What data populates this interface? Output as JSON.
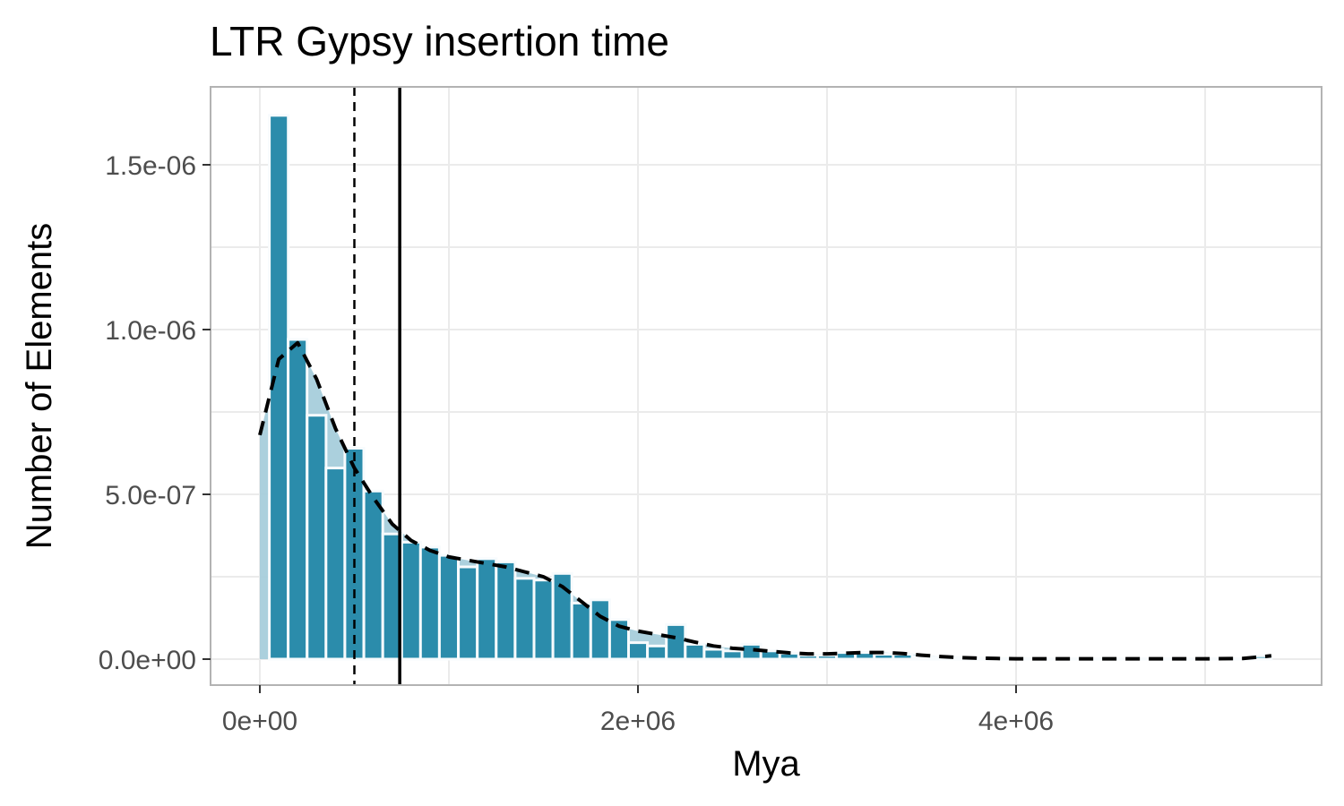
{
  "chart_data": {
    "type": "bar",
    "title": "LTR Gypsy insertion time",
    "xlabel": "Mya",
    "ylabel": "Number of Elements",
    "xlim": [
      -260000,
      5630000
    ],
    "ylim": [
      -8e-10,
      1.72e-06
    ],
    "x_ticks": [
      {
        "value": 0,
        "label": "0e+00"
      },
      {
        "value": 2000000,
        "label": "2e+06"
      },
      {
        "value": 4000000,
        "label": "4e+06"
      }
    ],
    "y_ticks": [
      {
        "value": 0,
        "label": "0.0e+00"
      },
      {
        "value": 5e-07,
        "label": "5.0e-07"
      },
      {
        "value": 1e-06,
        "label": "1.0e-06"
      },
      {
        "value": 1.5e-06,
        "label": "1.5e-06"
      }
    ],
    "bin_width": 100000,
    "bars": {
      "x": [
        100000,
        200000,
        300000,
        400000,
        500000,
        600000,
        700000,
        800000,
        900000,
        1000000,
        1100000,
        1200000,
        1300000,
        1400000,
        1500000,
        1600000,
        1700000,
        1800000,
        1900000,
        2000000,
        2100000,
        2200000,
        2300000,
        2400000,
        2500000,
        2600000,
        2700000,
        2800000,
        2900000,
        3000000,
        3100000,
        3200000,
        3300000,
        3400000,
        3500000,
        3600000,
        3700000,
        3800000,
        3900000,
        4000000,
        4100000,
        4200000,
        4300000,
        4400000,
        4500000,
        4600000,
        4700000,
        4800000,
        4900000,
        5000000,
        5100000,
        5200000,
        5300000
      ],
      "values": [
        1.65e-06,
        9.7e-07,
        7.4e-07,
        5.8e-07,
        6.4e-07,
        5.1e-07,
        3.8e-07,
        3.55e-07,
        3.4e-07,
        3.15e-07,
        2.8e-07,
        3.05e-07,
        2.95e-07,
        2.45e-07,
        2.4e-07,
        2.6e-07,
        1.7e-07,
        1.8e-07,
        1.2e-07,
        5e-08,
        4e-08,
        1.05e-07,
        4.5e-08,
        3e-08,
        2.5e-08,
        4.5e-08,
        2.5e-08,
        1.8e-08,
        1.2e-08,
        1.2e-08,
        2e-08,
        2e-08,
        1.5e-08,
        1.5e-08,
        8e-09,
        5e-09,
        5e-09,
        3e-09,
        2e-09,
        2e-09,
        2e-09,
        1e-09,
        1e-09,
        1e-09,
        1e-09,
        1e-09,
        1e-09,
        1e-09,
        1e-09,
        1e-09,
        1e-09,
        1e-09,
        1e-08
      ],
      "color": "#2b8cab",
      "outline_color": "#f7fbfd"
    },
    "density": {
      "x": [
        0,
        100000,
        200000,
        300000,
        400000,
        500000,
        600000,
        700000,
        800000,
        900000,
        1000000,
        1100000,
        1200000,
        1300000,
        1400000,
        1500000,
        1600000,
        1700000,
        1800000,
        1900000,
        2000000,
        2100000,
        2200000,
        2300000,
        2400000,
        2500000,
        2600000,
        2700000,
        2800000,
        2900000,
        3000000,
        3100000,
        3200000,
        3300000,
        3400000,
        3500000,
        3600000,
        3700000,
        3800000,
        3900000,
        4000000,
        4200000,
        4400000,
        4600000,
        4800000,
        5000000,
        5200000,
        5350000
      ],
      "y": [
        6.8e-07,
        9.1e-07,
        9.6e-07,
        8.5e-07,
        7e-07,
        5.8e-07,
        4.9e-07,
        4.1e-07,
        3.6e-07,
        3.3e-07,
        3.1e-07,
        3e-07,
        2.9e-07,
        2.8e-07,
        2.65e-07,
        2.5e-07,
        2.2e-07,
        1.75e-07,
        1.3e-07,
        1e-07,
        8.5e-08,
        7.5e-08,
        6.5e-08,
        5.2e-08,
        4e-08,
        3.3e-08,
        2.9e-08,
        2.4e-08,
        1.9e-08,
        1.6e-08,
        1.6e-08,
        1.8e-08,
        2e-08,
        2e-08,
        1.7e-08,
        1.2e-08,
        8e-09,
        5e-09,
        3e-09,
        2e-09,
        1e-09,
        1e-09,
        1e-09,
        1e-09,
        1e-09,
        1e-09,
        2e-09,
        1e-08
      ],
      "fill_color": "#a6cedb",
      "line_color": "#000000",
      "line_style": "dashed"
    },
    "vlines": [
      {
        "x": 500000,
        "style": "dashed",
        "color": "#000000"
      },
      {
        "x": 740000,
        "style": "solid",
        "color": "#000000"
      }
    ],
    "grid": true
  }
}
